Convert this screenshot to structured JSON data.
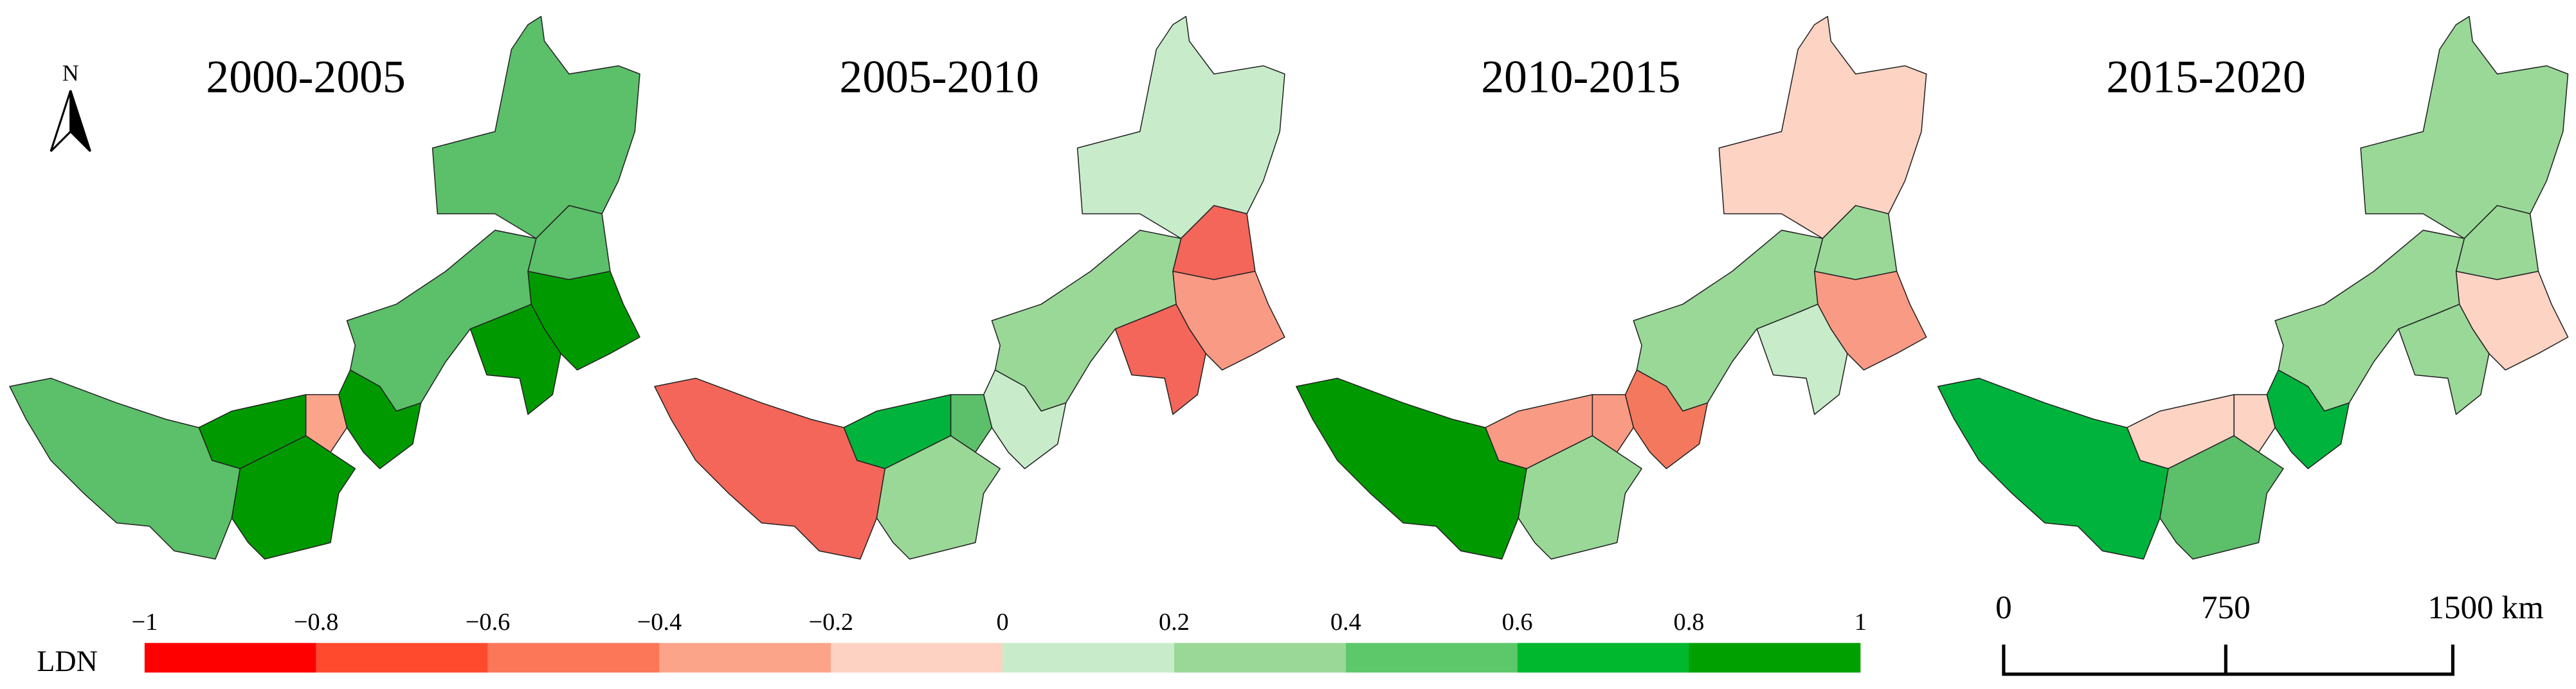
{
  "panels": [
    {
      "title": "2000-2005",
      "region_colors": [
        "#5cbf6a",
        "#5cbf6a",
        "#009a00",
        "#009a00",
        "#5cbf6a",
        "#009a00",
        "#fca48a",
        "#009a00",
        "#009a00",
        "#5cbf6a"
      ]
    },
    {
      "title": "2005-2010",
      "region_colors": [
        "#c8ecca",
        "#f4665a",
        "#f99a85",
        "#f4665a",
        "#9ad898",
        "#c8ecca",
        "#5cbf6a",
        "#00b33c",
        "#9ad898",
        "#f4665a"
      ]
    },
    {
      "title": "2010-2015",
      "region_colors": [
        "#fdd3c4",
        "#9ad898",
        "#f99a85",
        "#c8ecca",
        "#9ad898",
        "#f4785e",
        "#f99a85",
        "#f99a85",
        "#9ad898",
        "#009a00"
      ]
    },
    {
      "title": "2015-2020",
      "region_colors": [
        "#9ad898",
        "#9ad898",
        "#fdd3c4",
        "#9ad898",
        "#9ad898",
        "#00b33c",
        "#fdd3c4",
        "#fdd3c4",
        "#5cbf6a",
        "#00b33c"
      ]
    }
  ],
  "north_arrow": "N",
  "legend": {
    "title": "LDN",
    "ticks": [
      {
        "value": -1,
        "label": "−1"
      },
      {
        "value": -0.8,
        "label": "−0.8"
      },
      {
        "value": -0.6,
        "label": "−0.6"
      },
      {
        "value": -0.4,
        "label": "−0.4"
      },
      {
        "value": -0.2,
        "label": "−0.2"
      },
      0,
      0.2,
      0.4,
      0.6,
      0.8,
      1
    ],
    "colors": [
      "#ff0000",
      "#ff4a2e",
      "#fb7757",
      "#fca48a",
      "#fdd2c2",
      "#c8ecca",
      "#9ad898",
      "#5cc86a",
      "#00b82e",
      "#00a000"
    ]
  },
  "scale_bar": {
    "labels": [
      "0",
      "750",
      "1500 km"
    ]
  }
}
